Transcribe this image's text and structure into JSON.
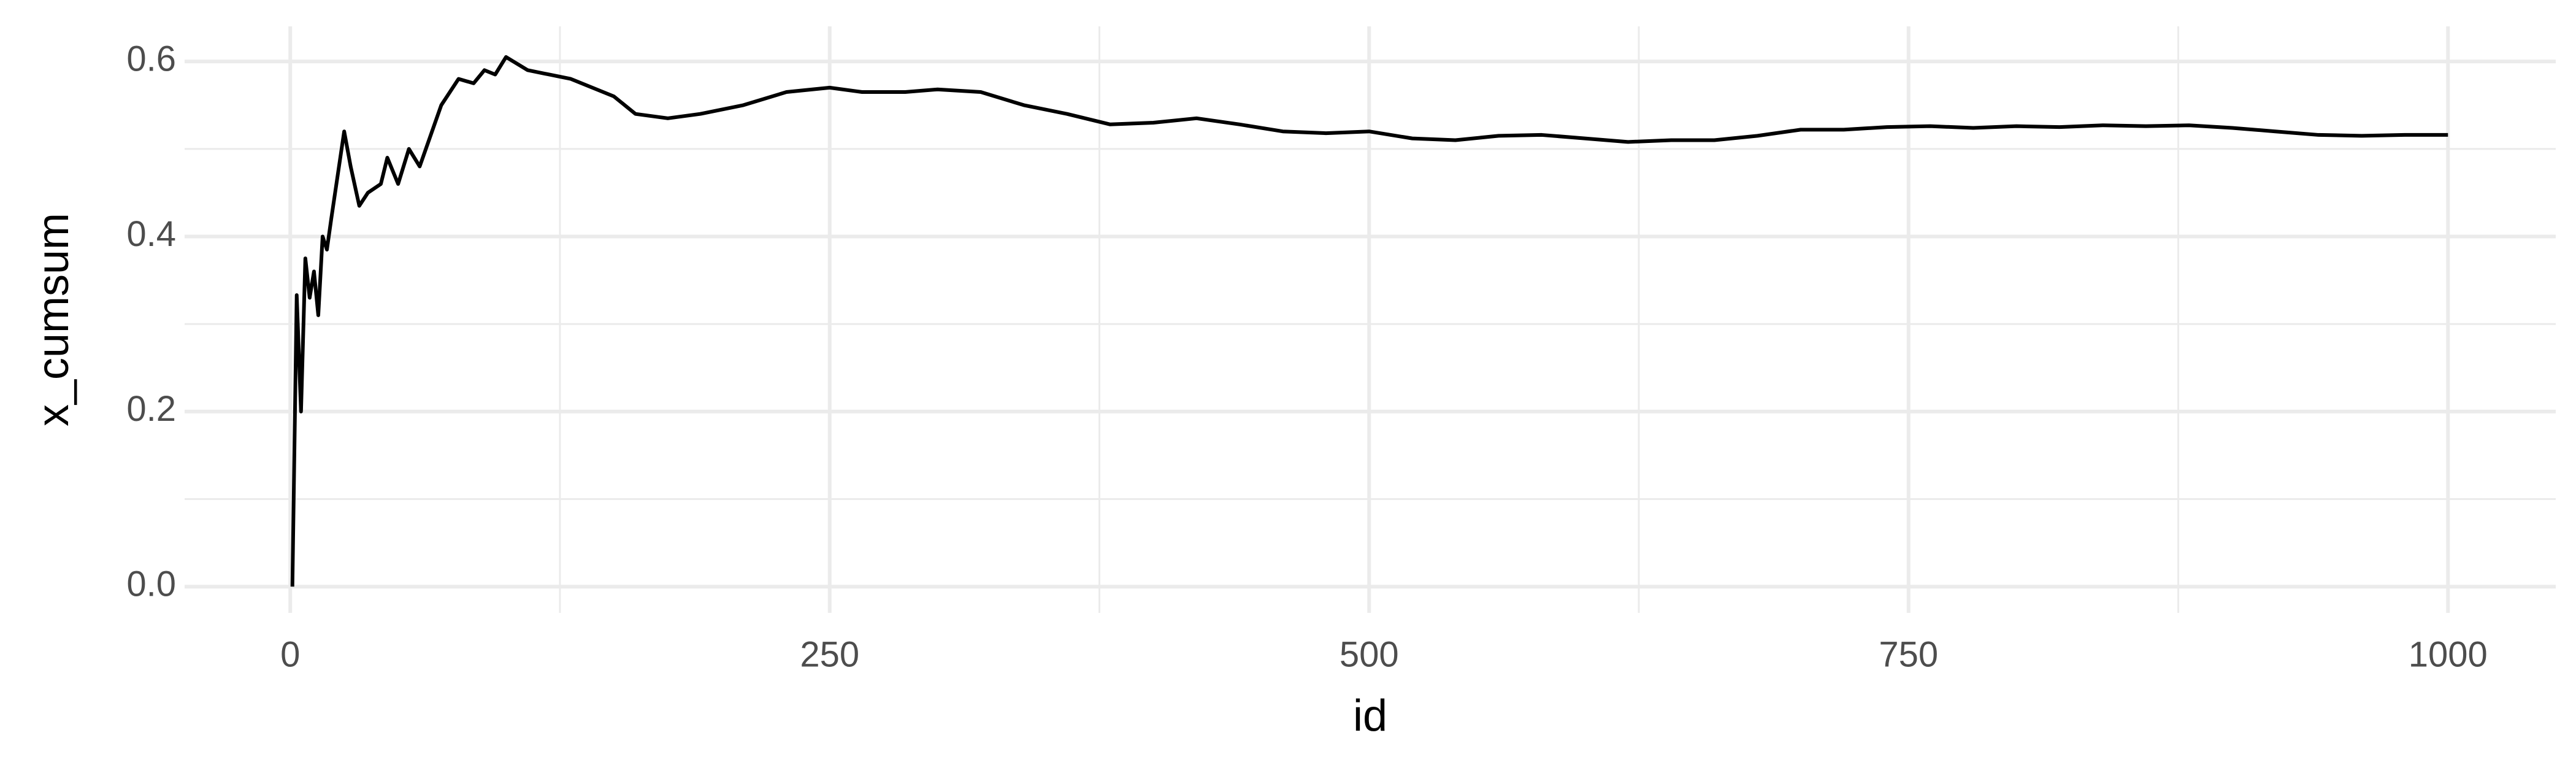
{
  "chart_data": {
    "type": "line",
    "x_label": "id",
    "y_label": "x_cumsum",
    "x": [
      1,
      3,
      5,
      7,
      9,
      11,
      13,
      15,
      17,
      19,
      25,
      28,
      32,
      36,
      42,
      45,
      50,
      55,
      60,
      70,
      78,
      85,
      90,
      95,
      100,
      110,
      120,
      130,
      150,
      160,
      175,
      190,
      210,
      230,
      250,
      265,
      285,
      300,
      320,
      340,
      360,
      380,
      400,
      420,
      440,
      460,
      480,
      500,
      520,
      540,
      560,
      580,
      600,
      620,
      640,
      660,
      680,
      700,
      720,
      740,
      760,
      780,
      800,
      820,
      840,
      860,
      880,
      900,
      920,
      940,
      960,
      980,
      1000
    ],
    "series": [
      {
        "name": "x_cumsum",
        "color": "#000000",
        "values": [
          0,
          0.333,
          0.2,
          0.375,
          0.33,
          0.36,
          0.31,
          0.4,
          0.385,
          0.42,
          0.52,
          0.48,
          0.435,
          0.45,
          0.46,
          0.49,
          0.46,
          0.5,
          0.48,
          0.55,
          0.58,
          0.575,
          0.59,
          0.585,
          0.605,
          0.59,
          0.585,
          0.58,
          0.56,
          0.54,
          0.535,
          0.54,
          0.55,
          0.565,
          0.57,
          0.565,
          0.565,
          0.568,
          0.565,
          0.55,
          0.54,
          0.528,
          0.53,
          0.535,
          0.528,
          0.52,
          0.518,
          0.52,
          0.512,
          0.51,
          0.515,
          0.516,
          0.512,
          0.508,
          0.51,
          0.51,
          0.515,
          0.522,
          0.522,
          0.525,
          0.526,
          0.524,
          0.526,
          0.525,
          0.527,
          0.526,
          0.527,
          0.524,
          0.52,
          0.516,
          0.515,
          0.516,
          0.516
        ]
      }
    ],
    "xlim": [
      -48.95,
      1049.95
    ],
    "xticks": [
      0,
      250,
      500,
      750,
      1000
    ],
    "ylim": [
      -0.03,
      0.64
    ],
    "yticks": [
      {
        "value": 0,
        "label": "0.0"
      },
      0.2,
      0.4,
      0.6
    ],
    "grid": true
  }
}
